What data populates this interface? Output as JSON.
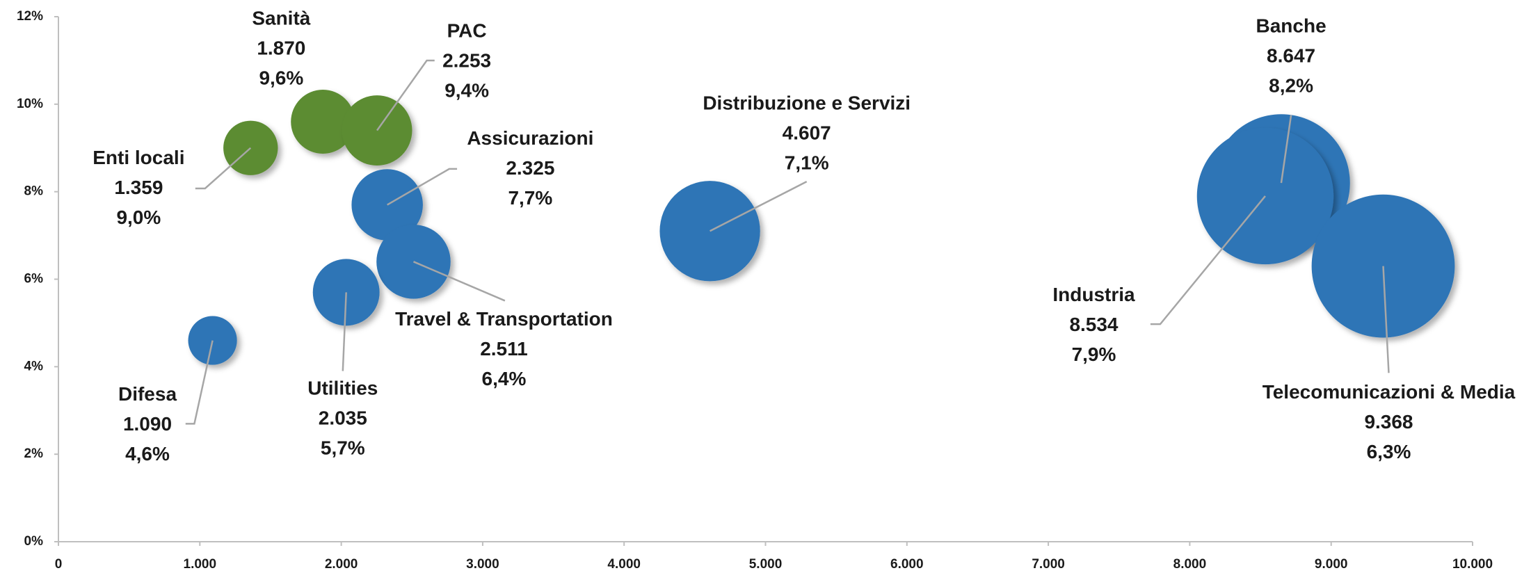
{
  "chart_data": {
    "type": "scatter",
    "categories": [
      "Sanità",
      "PAC",
      "Enti locali",
      "Assicurazioni",
      "Distribuzione e Servizi",
      "Banche",
      "Industria",
      "Telecomunicazioni  & Media",
      "Travel & Transportation",
      "Utilities",
      "Difesa"
    ],
    "x": [
      1870,
      2253,
      1359,
      2325,
      4607,
      8647,
      8534,
      9368,
      2511,
      2035,
      1090
    ],
    "x_labels": [
      "1.870",
      "2.253",
      "1.359",
      "2.325",
      "4.607",
      "8.647",
      "8.534",
      "9.368",
      "2.511",
      "2.035",
      "1.090"
    ],
    "values": [
      9.6,
      9.4,
      9.0,
      7.7,
      7.1,
      8.2,
      7.9,
      6.3,
      6.4,
      5.7,
      4.6
    ],
    "value_labels": [
      "9,6%",
      "9,4%",
      "9,0%",
      "7,7%",
      "7,1%",
      "8,2%",
      "7,9%",
      "6,3%",
      "6,4%",
      "5,7%",
      "4,6%"
    ],
    "colors": [
      "#5b8c32",
      "#5b8c32",
      "#5b8c32",
      "#2e75b6",
      "#2e75b6",
      "#2e75b6",
      "#2e75b6",
      "#2e75b6",
      "#2e75b6",
      "#2e75b6",
      "#2e75b6"
    ],
    "xlim": [
      0,
      10000
    ],
    "xticks": [
      0,
      {
        "value": 1000,
        "label": "1.000"
      },
      {
        "value": 2000,
        "label": "2.000"
      },
      {
        "value": 3000,
        "label": "3.000"
      },
      {
        "value": 4000,
        "label": "4.000"
      },
      {
        "value": 5000,
        "label": "5.000"
      },
      {
        "value": 6000,
        "label": "6.000"
      },
      {
        "value": 7000,
        "label": "7.000"
      },
      {
        "value": 8000,
        "label": "8.000"
      },
      {
        "value": 9000,
        "label": "9.000"
      },
      {
        "value": 10000,
        "label": "10.000"
      }
    ],
    "ylim": [
      0,
      12
    ],
    "yticks": [
      {
        "value": 0,
        "label": "0%"
      },
      {
        "value": 2,
        "label": "2%"
      },
      {
        "value": 4,
        "label": "4%"
      },
      {
        "value": 6,
        "label": "6%"
      },
      {
        "value": 8,
        "label": "8%"
      },
      {
        "value": 10,
        "label": "10%"
      },
      {
        "value": 12,
        "label": "12%"
      }
    ],
    "grid": false
  }
}
